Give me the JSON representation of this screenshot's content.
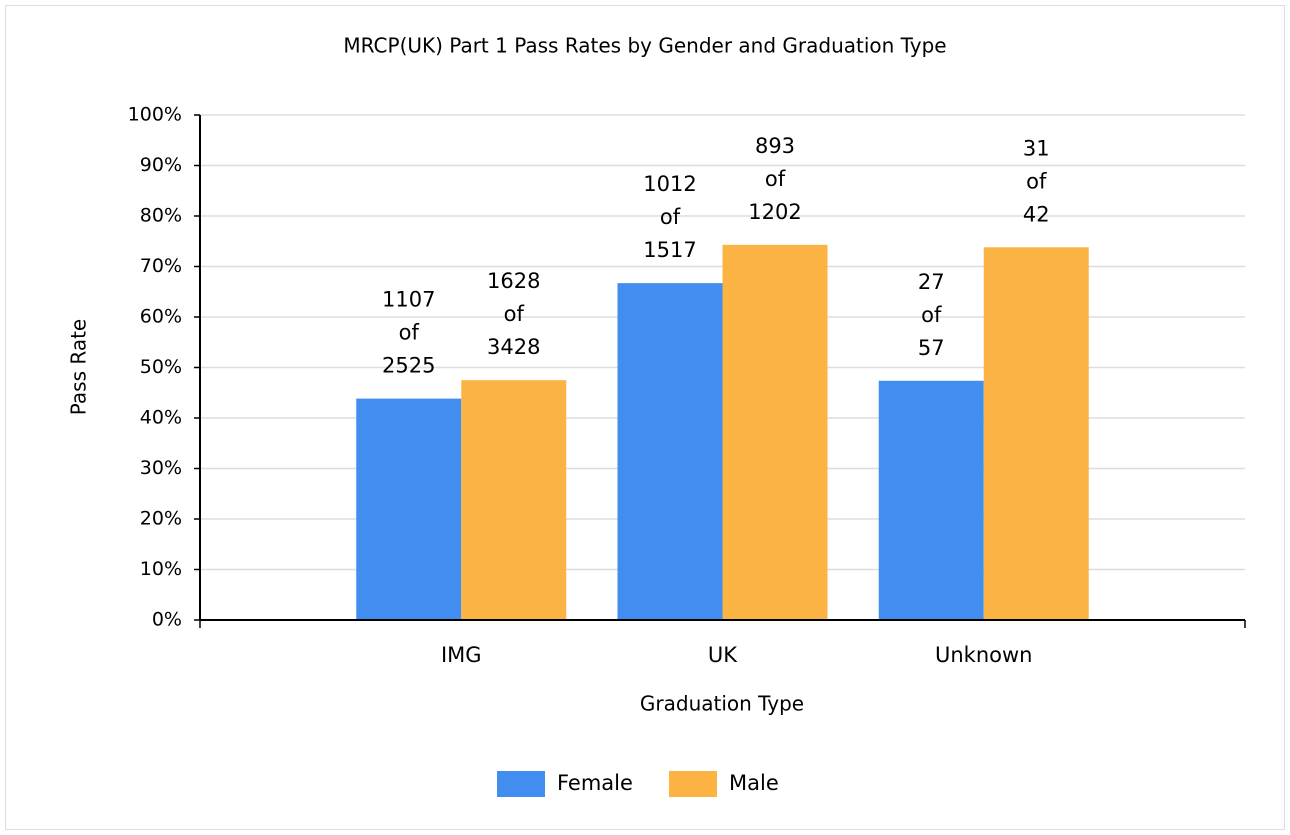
{
  "chart_data": {
    "type": "bar",
    "title": "MRCP(UK) Part 1 Pass Rates by Gender and Graduation Type",
    "x_label": "Graduation Type",
    "y_label": "Pass Rate",
    "categories": [
      "IMG",
      "UK",
      "Unknown"
    ],
    "series": [
      {
        "name": "Female",
        "color": "#418ef0",
        "values": [
          43.84,
          66.71,
          47.37
        ],
        "value_labels": [
          [
            "1107",
            "of",
            "2525"
          ],
          [
            "1012",
            "of",
            "1517"
          ],
          [
            "27",
            "of",
            "57"
          ]
        ]
      },
      {
        "name": "Male",
        "color": "#fbb443",
        "values": [
          47.49,
          74.29,
          73.81
        ],
        "value_labels": [
          [
            "1628",
            "of",
            "3428"
          ],
          [
            "893",
            "of",
            "1202"
          ],
          [
            "31",
            "of",
            "42"
          ]
        ]
      }
    ],
    "ylim": [
      0,
      100
    ],
    "yticks": [
      {
        "value": 0,
        "label": "0%"
      },
      {
        "value": 10,
        "label": "10%"
      },
      {
        "value": 20,
        "label": "20%"
      },
      {
        "value": 30,
        "label": "30%"
      },
      {
        "value": 40,
        "label": "40%"
      },
      {
        "value": 50,
        "label": "50%"
      },
      {
        "value": 60,
        "label": "60%"
      },
      {
        "value": 70,
        "label": "70%"
      },
      {
        "value": 80,
        "label": "80%"
      },
      {
        "value": 90,
        "label": "90%"
      },
      {
        "value": 100,
        "label": "100%"
      }
    ],
    "grid": true,
    "legend": "bottom"
  }
}
